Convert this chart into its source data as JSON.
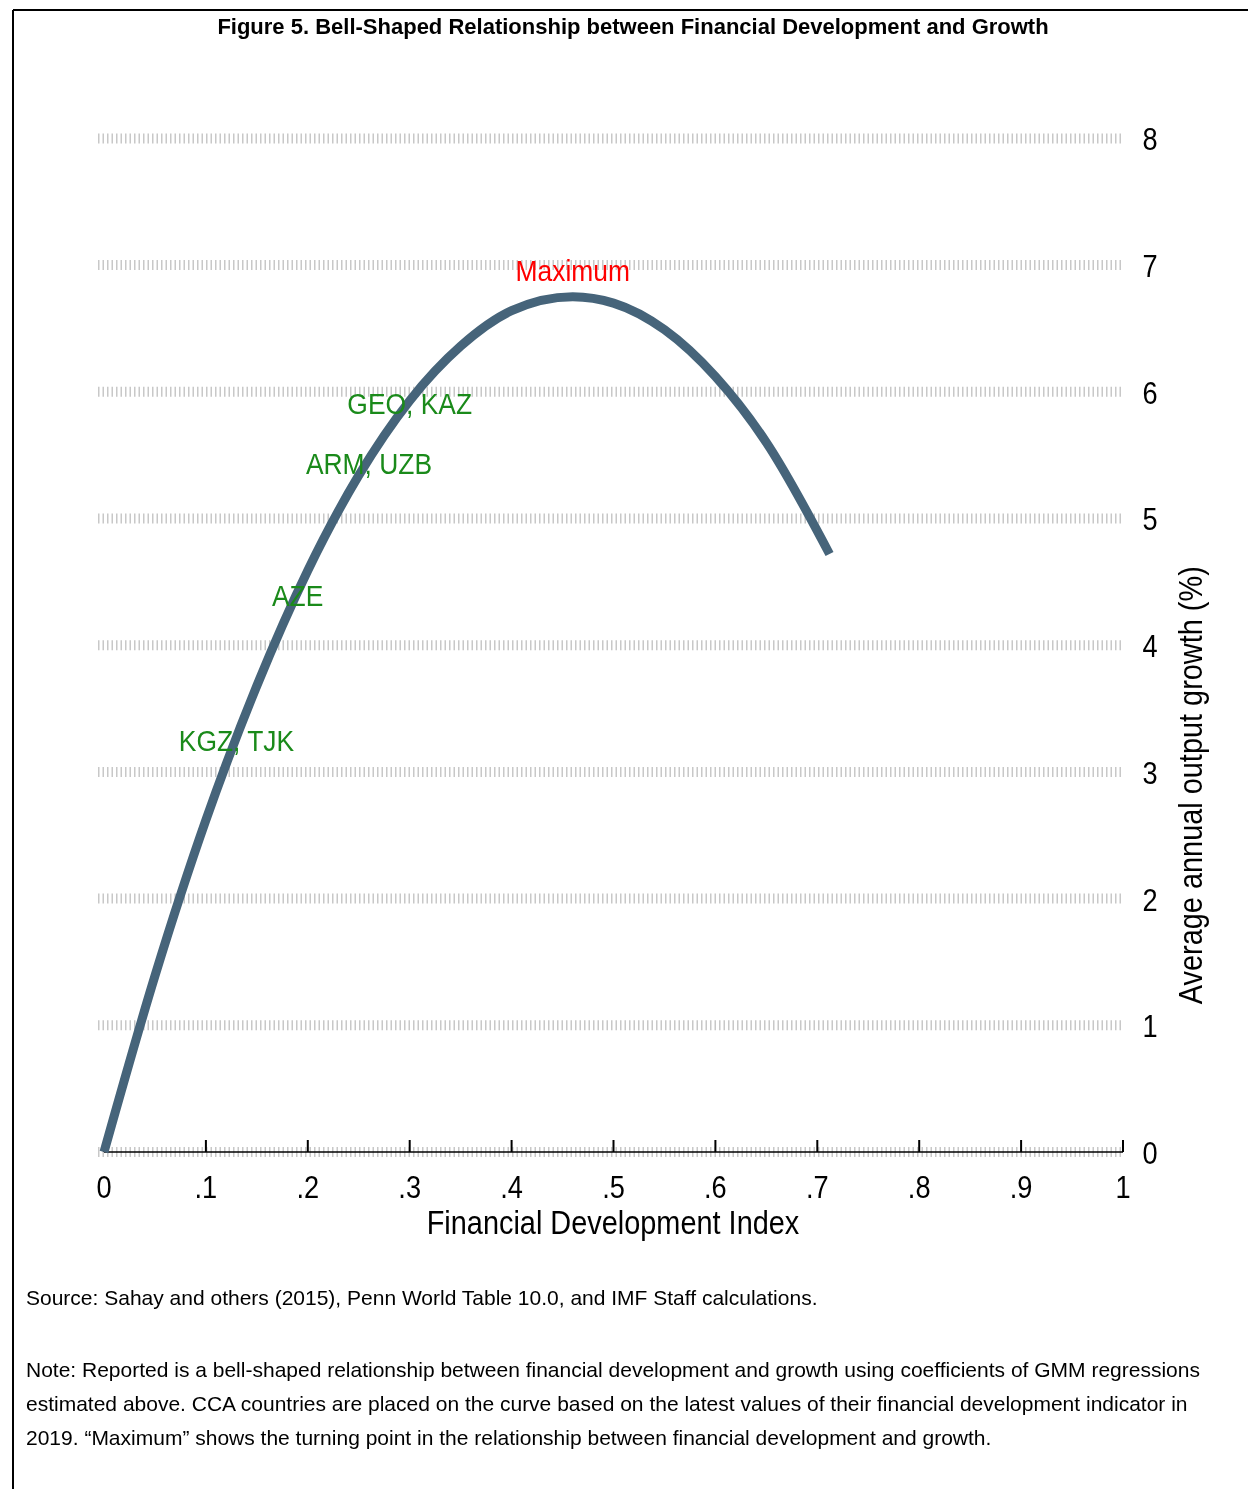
{
  "chart_data": {
    "type": "line",
    "title": "Figure 5. Bell-Shaped Relationship between Financial Development and Growth",
    "xlabel": "Financial Development Index",
    "ylabel": "Average annual output growth (%)",
    "x": [
      0,
      0.05,
      0.1,
      0.15,
      0.2,
      0.25,
      0.3,
      0.35,
      0.4,
      0.46,
      0.5,
      0.55,
      0.6,
      0.65,
      0.712
    ],
    "series": [
      {
        "color": "#46647a",
        "values": [
          0,
          1.39,
          2.62,
          3.68,
          4.59,
          5.34,
          5.93,
          6.36,
          6.64,
          6.75,
          6.7,
          6.49,
          6.12,
          5.6,
          4.72
        ]
      }
    ],
    "xlim": [
      0,
      1
    ],
    "ylim": [
      0,
      8
    ],
    "xticks": [
      0,
      {
        "value": 0.1,
        "label": ".1"
      },
      {
        "value": 0.2,
        "label": ".2"
      },
      {
        "value": 0.3,
        "label": ".3"
      },
      {
        "value": 0.4,
        "label": ".4"
      },
      {
        "value": 0.5,
        "label": ".5"
      },
      {
        "value": 0.6,
        "label": ".6"
      },
      {
        "value": 0.7,
        "label": ".7"
      },
      {
        "value": 0.8,
        "label": ".8"
      },
      {
        "value": 0.9,
        "label": ".9"
      },
      1
    ],
    "yticks": [
      0,
      1,
      2,
      3,
      4,
      5,
      6,
      7,
      8
    ],
    "grid": "y",
    "marker": "none",
    "line_style": "solid",
    "annotations": [
      {
        "text": "Maximum",
        "x": 0.46,
        "y": 6.75
      },
      {
        "text": "GEO, KAZ",
        "x": 0.3,
        "y": 5.9
      },
      {
        "text": "ARM, UZB",
        "x": 0.26,
        "y": 5.43
      },
      {
        "text": "AZE",
        "x": 0.19,
        "y": 4.39
      },
      {
        "text": "KGZ, TJK",
        "x": 0.13,
        "y": 3.24
      },
      "Source: Sahay and others (2015), Penn World Table 10.0, and IMF Staff calculations.",
      "Note: Reported is a bell-shaped relationship between financial development and growth using coefficients of GMM regressions estimated above. CCA countries are placed on the curve based on the latest values of their financial development indicator in 2019. “Maximum” shows the turning point in the relationship between financial development and growth."
    ]
  }
}
